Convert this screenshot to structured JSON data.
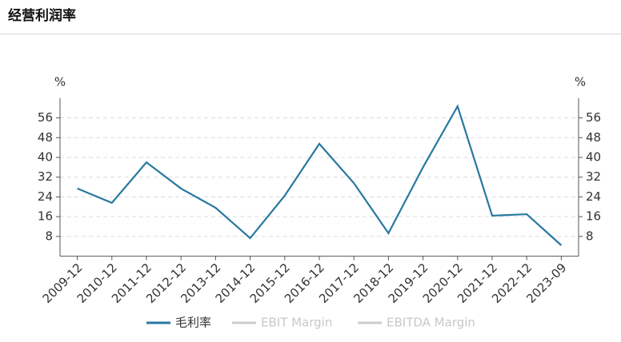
{
  "chart_data": {
    "type": "line",
    "title": "经营利润率",
    "ylabel": "%",
    "y2label": "%",
    "categories": [
      "2009-12",
      "2010-12",
      "2011-12",
      "2012-12",
      "2013-12",
      "2014-12",
      "2015-12",
      "2016-12",
      "2017-12",
      "2018-12",
      "2019-12",
      "2020-12",
      "2021-12",
      "2022-12",
      "2023-09"
    ],
    "series": [
      {
        "name": "毛利率",
        "color": "#2878a0",
        "values": [
          27.4,
          21.6,
          38,
          27.4,
          19.6,
          7.3,
          24.5,
          45.5,
          29.6,
          9.3,
          36,
          60.7,
          16.4,
          17,
          4.4
        ]
      },
      {
        "name": "EBIT Margin",
        "color": "#cccccc",
        "values": [
          null,
          null,
          null,
          null,
          null,
          null,
          null,
          null,
          null,
          null,
          null,
          null,
          null,
          null,
          null
        ]
      },
      {
        "name": "EBITDA Margin",
        "color": "#cccccc",
        "values": [
          null,
          null,
          null,
          null,
          null,
          null,
          null,
          null,
          null,
          null,
          null,
          null,
          null,
          null,
          null
        ]
      }
    ],
    "ylim": [
      0,
      64
    ],
    "yticks": [
      8,
      16,
      24,
      32,
      40,
      48,
      56
    ],
    "y2lim": [
      0,
      64
    ],
    "y2ticks": [
      8,
      16,
      24,
      32,
      40,
      48,
      56
    ],
    "grid": true
  }
}
